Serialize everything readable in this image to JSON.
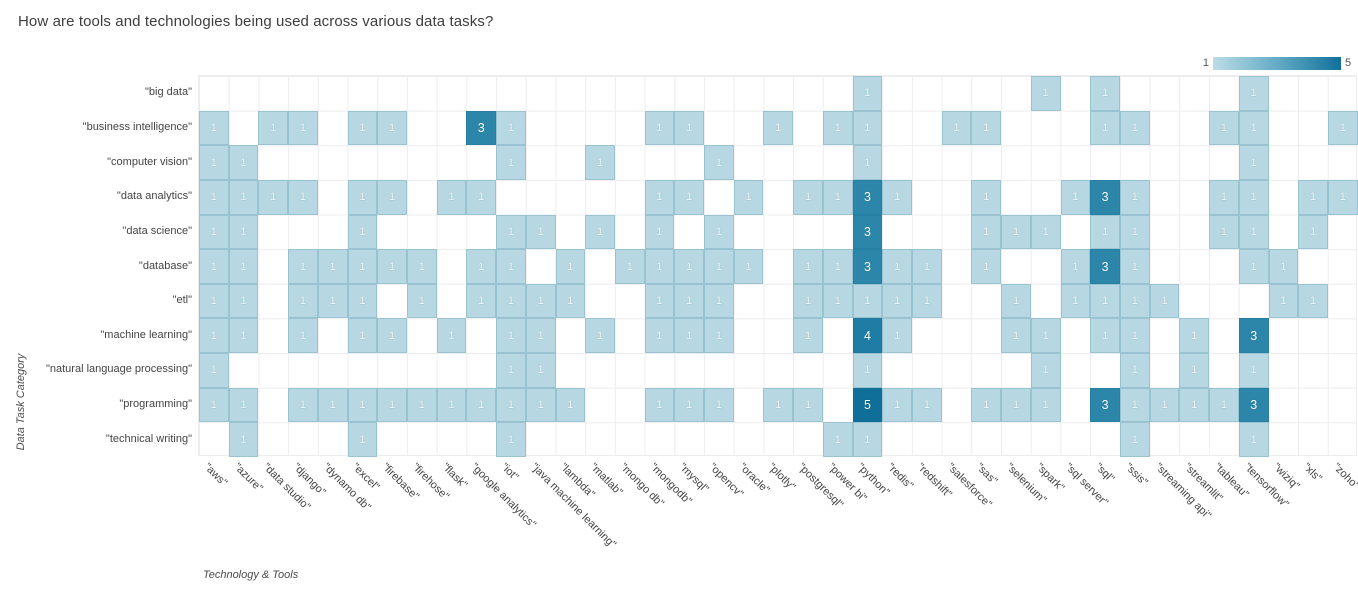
{
  "title": "How are tools and technologies being used across various data tasks?",
  "legend": {
    "min_label": "1",
    "max_label": "5"
  },
  "axes": {
    "x_title": "Technology & Tools",
    "y_title": "Data Task Category"
  },
  "chart_data": {
    "type": "heatmap",
    "x_categories": [
      "\"aws\"",
      "\"azure\"",
      "\"data studio\"",
      "\"django\"",
      "\"dynamo db\"",
      "\"excel\"",
      "\"firebase\"",
      "\"firehose\"",
      "\"flask\"",
      "\"google analytics\"",
      "\"iot\"",
      "\"java machine learning\"",
      "\"lambda\"",
      "\"matlab\"",
      "\"mongo db\"",
      "\"mongodb\"",
      "\"mysql\"",
      "\"opencv\"",
      "\"oracle\"",
      "\"plotly\"",
      "\"postgresql\"",
      "\"power bi\"",
      "\"python\"",
      "\"redis\"",
      "\"redshift\"",
      "\"salesforce\"",
      "\"sas\"",
      "\"selenium\"",
      "\"spark\"",
      "\"sql server\"",
      "\"sql\"",
      "\"ssis\"",
      "\"streaming api\"",
      "\"streamlit\"",
      "\"tableau\"",
      "\"tensorflow\"",
      "\"wiziq\"",
      "\"xls\"",
      "\"zoho\""
    ],
    "y_categories": [
      "\"big data\"",
      "\"business intelligence\"",
      "\"computer vision\"",
      "\"data analytics\"",
      "\"data science\"",
      "\"database\"",
      "\"etl\"",
      "\"machine learning\"",
      "\"natural language processing\"",
      "\"programming\"",
      "\"technical writing\""
    ],
    "matrix": [
      [
        0,
        0,
        0,
        0,
        0,
        0,
        0,
        0,
        0,
        0,
        0,
        0,
        0,
        0,
        0,
        0,
        0,
        0,
        0,
        0,
        0,
        0,
        1,
        0,
        0,
        0,
        0,
        0,
        1,
        0,
        1,
        0,
        0,
        0,
        0,
        1,
        0,
        0,
        0
      ],
      [
        1,
        0,
        1,
        1,
        0,
        1,
        1,
        0,
        0,
        3,
        1,
        0,
        0,
        0,
        0,
        1,
        1,
        0,
        0,
        1,
        0,
        1,
        1,
        0,
        0,
        1,
        1,
        0,
        0,
        0,
        1,
        1,
        0,
        0,
        1,
        1,
        0,
        0,
        1
      ],
      [
        1,
        1,
        0,
        0,
        0,
        0,
        0,
        0,
        0,
        0,
        1,
        0,
        0,
        1,
        0,
        0,
        0,
        1,
        0,
        0,
        0,
        0,
        1,
        0,
        0,
        0,
        0,
        0,
        0,
        0,
        0,
        0,
        0,
        0,
        0,
        1,
        0,
        0,
        0
      ],
      [
        1,
        1,
        1,
        1,
        0,
        1,
        1,
        0,
        1,
        1,
        0,
        0,
        0,
        0,
        0,
        1,
        1,
        0,
        1,
        0,
        1,
        1,
        3,
        1,
        0,
        0,
        1,
        0,
        0,
        1,
        3,
        1,
        0,
        0,
        1,
        1,
        0,
        1,
        1
      ],
      [
        1,
        1,
        0,
        0,
        0,
        1,
        0,
        0,
        0,
        0,
        1,
        1,
        0,
        1,
        0,
        1,
        0,
        1,
        0,
        0,
        0,
        0,
        3,
        0,
        0,
        0,
        1,
        1,
        1,
        0,
        1,
        1,
        0,
        0,
        1,
        1,
        0,
        1,
        0
      ],
      [
        1,
        1,
        0,
        1,
        1,
        1,
        1,
        1,
        0,
        1,
        1,
        0,
        1,
        0,
        1,
        1,
        1,
        1,
        1,
        0,
        1,
        1,
        3,
        1,
        1,
        0,
        1,
        0,
        0,
        1,
        3,
        1,
        0,
        0,
        0,
        1,
        1,
        0,
        0
      ],
      [
        1,
        1,
        0,
        1,
        1,
        1,
        0,
        1,
        0,
        1,
        1,
        1,
        1,
        0,
        0,
        1,
        1,
        1,
        0,
        0,
        1,
        1,
        1,
        1,
        1,
        0,
        0,
        1,
        0,
        1,
        1,
        1,
        1,
        0,
        0,
        0,
        1,
        1,
        0
      ],
      [
        1,
        1,
        0,
        1,
        0,
        1,
        1,
        0,
        1,
        0,
        1,
        1,
        0,
        1,
        0,
        1,
        1,
        1,
        0,
        0,
        1,
        0,
        4,
        1,
        0,
        0,
        0,
        1,
        1,
        0,
        1,
        1,
        0,
        1,
        0,
        3,
        0,
        0,
        0
      ],
      [
        1,
        0,
        0,
        0,
        0,
        0,
        0,
        0,
        0,
        0,
        1,
        1,
        0,
        0,
        0,
        0,
        0,
        0,
        0,
        0,
        0,
        0,
        1,
        0,
        0,
        0,
        0,
        0,
        1,
        0,
        0,
        1,
        0,
        1,
        0,
        1,
        0,
        0,
        0
      ],
      [
        1,
        1,
        0,
        1,
        1,
        1,
        1,
        1,
        1,
        1,
        1,
        1,
        1,
        0,
        0,
        1,
        1,
        1,
        0,
        1,
        1,
        0,
        5,
        1,
        1,
        0,
        1,
        1,
        1,
        0,
        3,
        1,
        1,
        1,
        1,
        3,
        0,
        0,
        0
      ],
      [
        0,
        1,
        0,
        0,
        0,
        1,
        0,
        0,
        0,
        0,
        1,
        0,
        0,
        0,
        0,
        0,
        0,
        0,
        0,
        0,
        0,
        1,
        1,
        0,
        0,
        0,
        0,
        0,
        0,
        0,
        0,
        1,
        0,
        0,
        0,
        1,
        0,
        0,
        0
      ]
    ],
    "value_colors": {
      "1": "#b7d8e2",
      "3": "#2b86aa",
      "4": "#1f7da5",
      "5": "#0f6f99"
    },
    "colorbar": {
      "min": 1,
      "max": 5,
      "position": "top-right"
    },
    "grid": true
  }
}
